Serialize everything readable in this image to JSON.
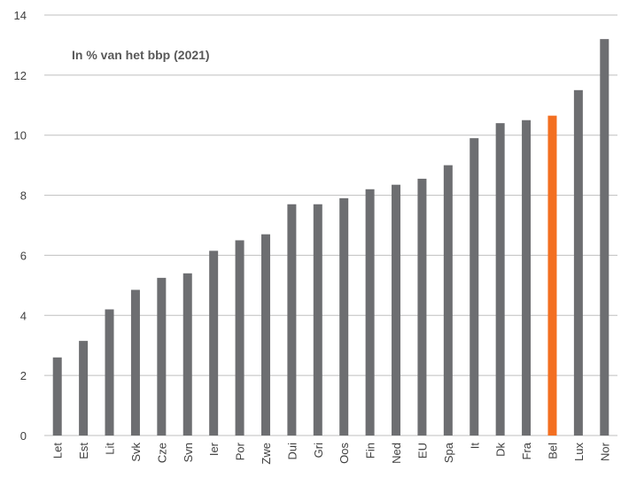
{
  "chart_data": {
    "type": "bar",
    "title": "In % van het bbp (2021)",
    "xlabel": "",
    "ylabel": "",
    "ylim": [
      0,
      14
    ],
    "yticks": [
      0,
      2,
      4,
      6,
      8,
      10,
      12,
      14
    ],
    "grid": true,
    "categories": [
      "Let",
      "Est",
      "Lit",
      "Svk",
      "Cze",
      "Svn",
      "Ier",
      "Por",
      "Zwe",
      "Dui",
      "Gri",
      "Oos",
      "Fin",
      "Ned",
      "EU",
      "Spa",
      "It",
      "Dk",
      "Fra",
      "Bel",
      "Lux",
      "Nor"
    ],
    "values": [
      2.6,
      3.15,
      4.2,
      4.85,
      5.25,
      5.4,
      6.15,
      6.5,
      6.7,
      7.7,
      7.7,
      7.9,
      8.2,
      8.35,
      8.55,
      9.0,
      9.9,
      10.4,
      10.5,
      10.65,
      11.5,
      13.2
    ],
    "highlight": "Bel",
    "colors": {
      "bar": "#6d6e71",
      "highlight": "#f36f21",
      "grid": "#bfbfbf",
      "axis": "#bfbfbf"
    }
  }
}
